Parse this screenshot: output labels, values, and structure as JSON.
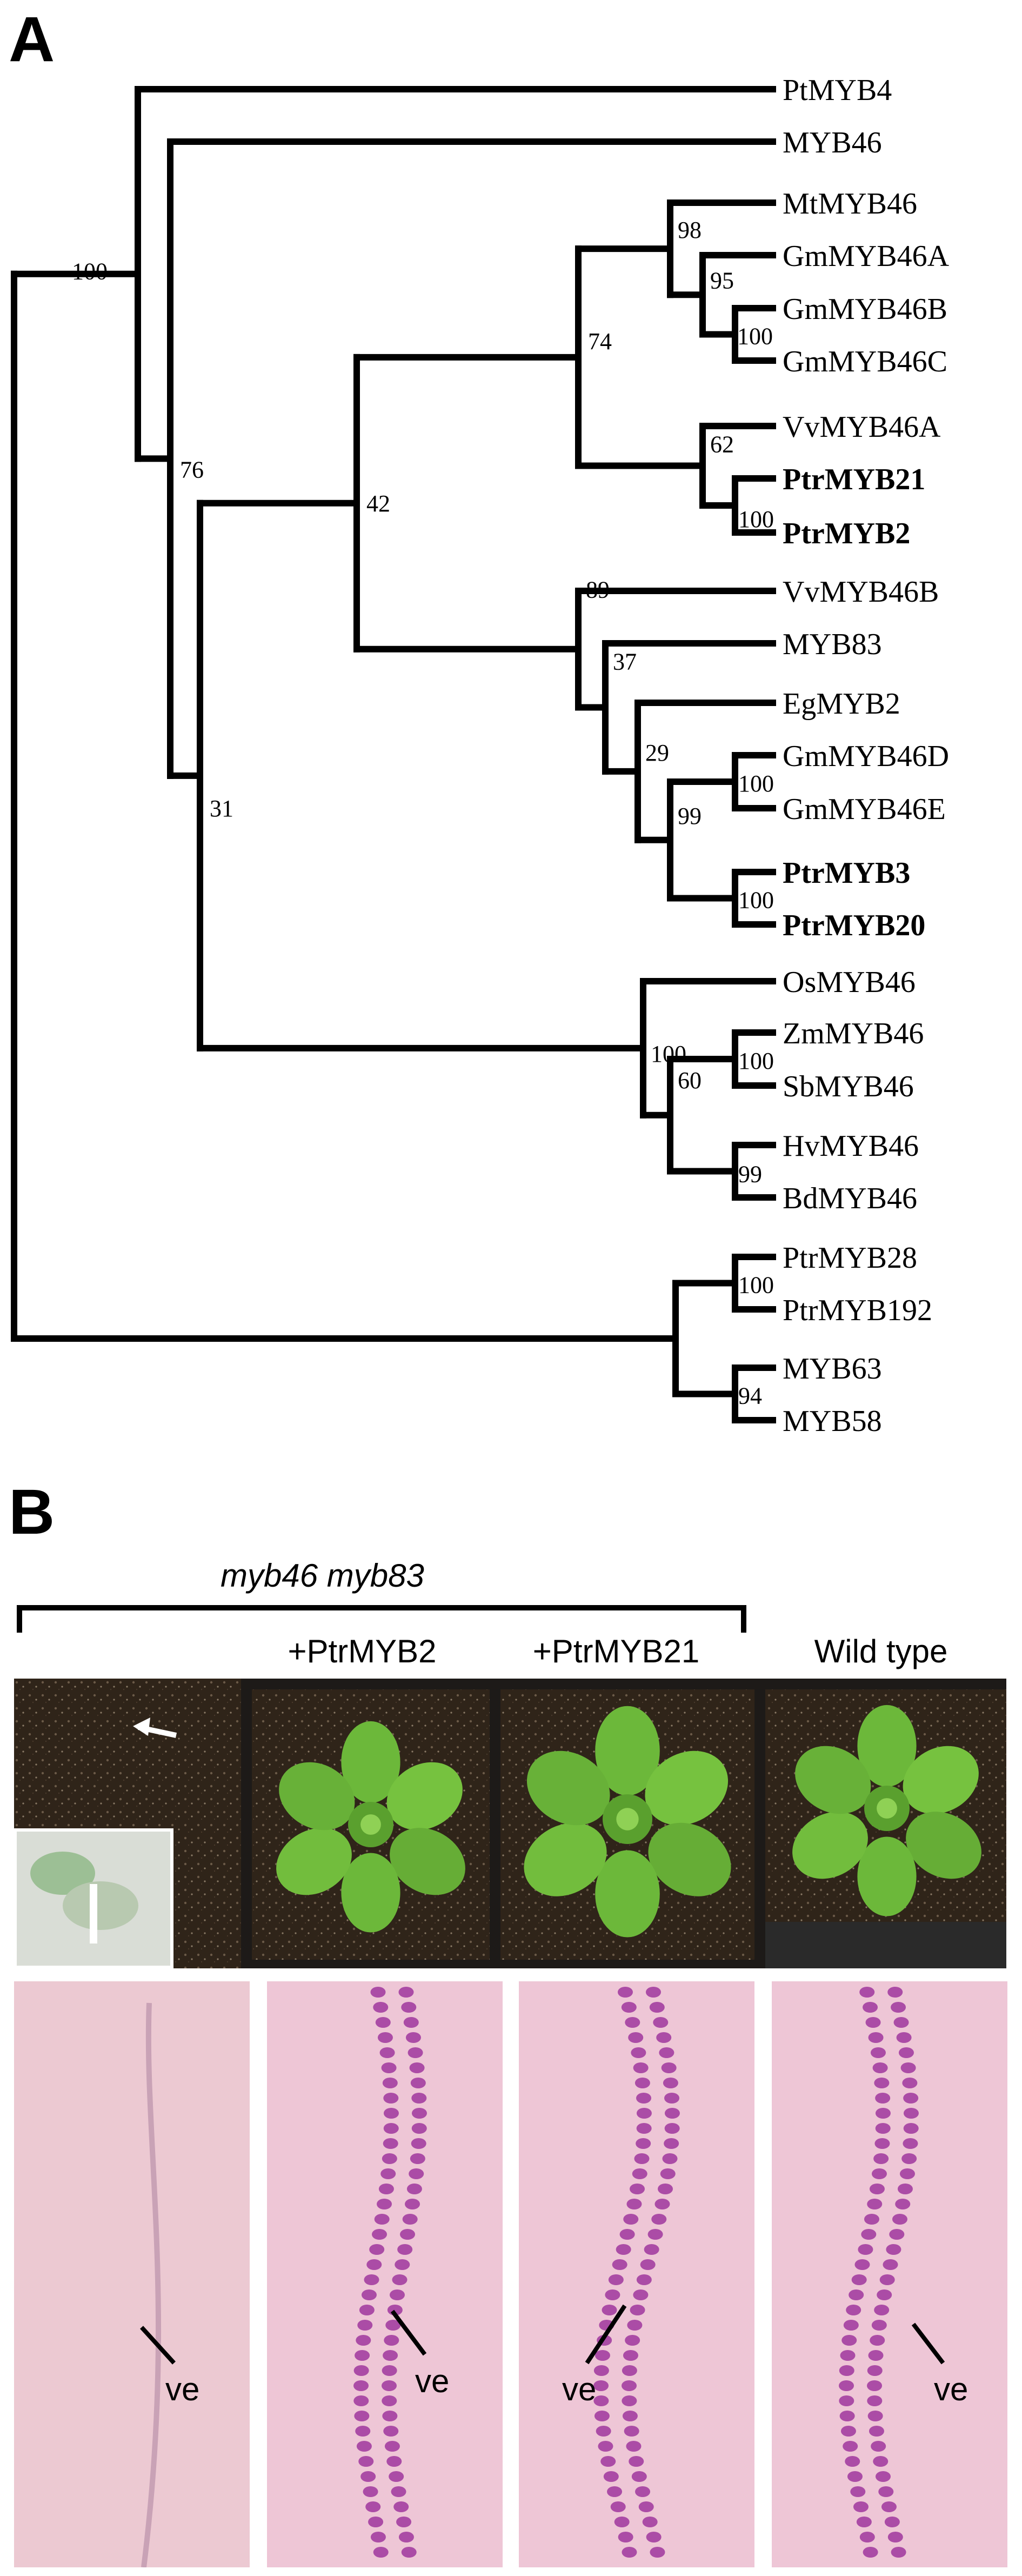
{
  "panels": {
    "a_label": "A",
    "b_label": "B"
  },
  "tree": {
    "leaves": [
      {
        "name": "PtMYB4",
        "bold": false
      },
      {
        "name": "MYB46",
        "bold": false
      },
      {
        "name": "MtMYB46",
        "bold": false
      },
      {
        "name": "GmMYB46A",
        "bold": false
      },
      {
        "name": "GmMYB46B",
        "bold": false
      },
      {
        "name": "GmMYB46C",
        "bold": false
      },
      {
        "name": "VvMYB46A",
        "bold": false
      },
      {
        "name": "PtrMYB21",
        "bold": true
      },
      {
        "name": "PtrMYB2",
        "bold": true
      },
      {
        "name": "VvMYB46B",
        "bold": false
      },
      {
        "name": "MYB83",
        "bold": false
      },
      {
        "name": "EgMYB2",
        "bold": false
      },
      {
        "name": "GmMYB46D",
        "bold": false
      },
      {
        "name": "GmMYB46E",
        "bold": false
      },
      {
        "name": "PtrMYB3",
        "bold": true
      },
      {
        "name": "PtrMYB20",
        "bold": true
      },
      {
        "name": "OsMYB46",
        "bold": false
      },
      {
        "name": "ZmMYB46",
        "bold": false
      },
      {
        "name": "SbMYB46",
        "bold": false
      },
      {
        "name": "HvMYB46",
        "bold": false
      },
      {
        "name": "BdMYB46",
        "bold": false
      },
      {
        "name": "PtrMYB28",
        "bold": false
      },
      {
        "name": "PtrMYB192",
        "bold": false
      },
      {
        "name": "MYB63",
        "bold": false
      },
      {
        "name": "MYB58",
        "bold": false
      }
    ],
    "bootstrap": [
      "100",
      "76",
      "31",
      "42",
      "74",
      "98",
      "95",
      "100",
      "62",
      "100",
      "89",
      "37",
      "29",
      "100",
      "99",
      "100",
      "100",
      "100",
      "60",
      "99",
      "100",
      "94"
    ]
  },
  "panel_b": {
    "group_label": "myb46 myb83",
    "columns": [
      "+PtrMYB2",
      "+PtrMYB21",
      "Wild type"
    ],
    "ve_label": "ve"
  },
  "colors": {
    "soil": "#2e2218",
    "leaf": "#6cb83a",
    "micro_bg": "#ecc7d0",
    "vessel": "#9a2d9a"
  }
}
